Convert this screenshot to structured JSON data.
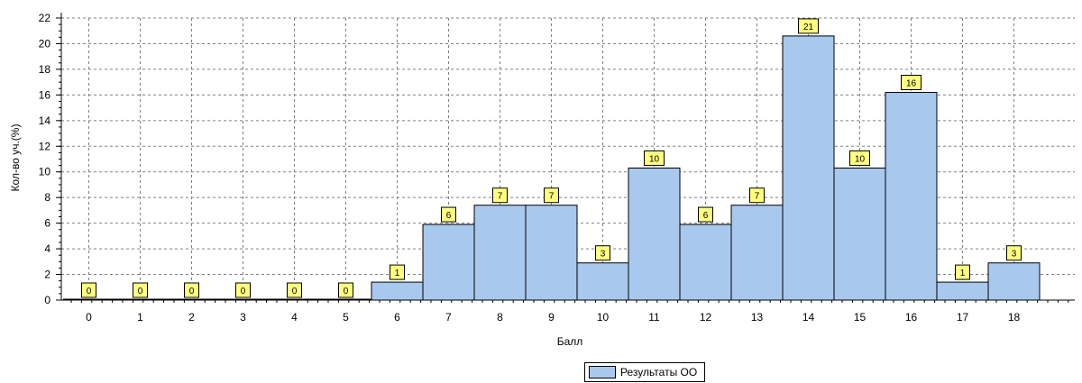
{
  "chart_data": {
    "type": "bar",
    "categories": [
      "0",
      "1",
      "2",
      "3",
      "4",
      "5",
      "6",
      "7",
      "8",
      "9",
      "10",
      "11",
      "12",
      "13",
      "14",
      "15",
      "16",
      "17",
      "18"
    ],
    "series": [
      {
        "name": "Результаты ОО",
        "values": [
          0,
          0,
          0,
          0,
          0,
          0,
          1.4,
          5.9,
          7.4,
          7.4,
          2.9,
          10.3,
          5.9,
          7.4,
          20.6,
          10.3,
          16.2,
          1.4,
          2.9
        ],
        "labels": [
          "0",
          "0",
          "0",
          "0",
          "0",
          "0",
          "1",
          "6",
          "7",
          "7",
          "3",
          "10",
          "6",
          "7",
          "21",
          "10",
          "16",
          "1",
          "3"
        ]
      }
    ],
    "xlabel": "Балл",
    "ylabel": "Кол-во уч.(%)",
    "ylim": [
      0,
      22
    ],
    "yticks": [
      "0",
      "2",
      "4",
      "6",
      "8",
      "10",
      "12",
      "14",
      "16",
      "18",
      "20",
      "22"
    ],
    "grid": true,
    "legend_position": "bottom",
    "colors": {
      "bar_fill": "#a8c8ee",
      "bar_stroke": "#000000",
      "label_fill": "#ffff80",
      "grid": "#808080"
    }
  }
}
